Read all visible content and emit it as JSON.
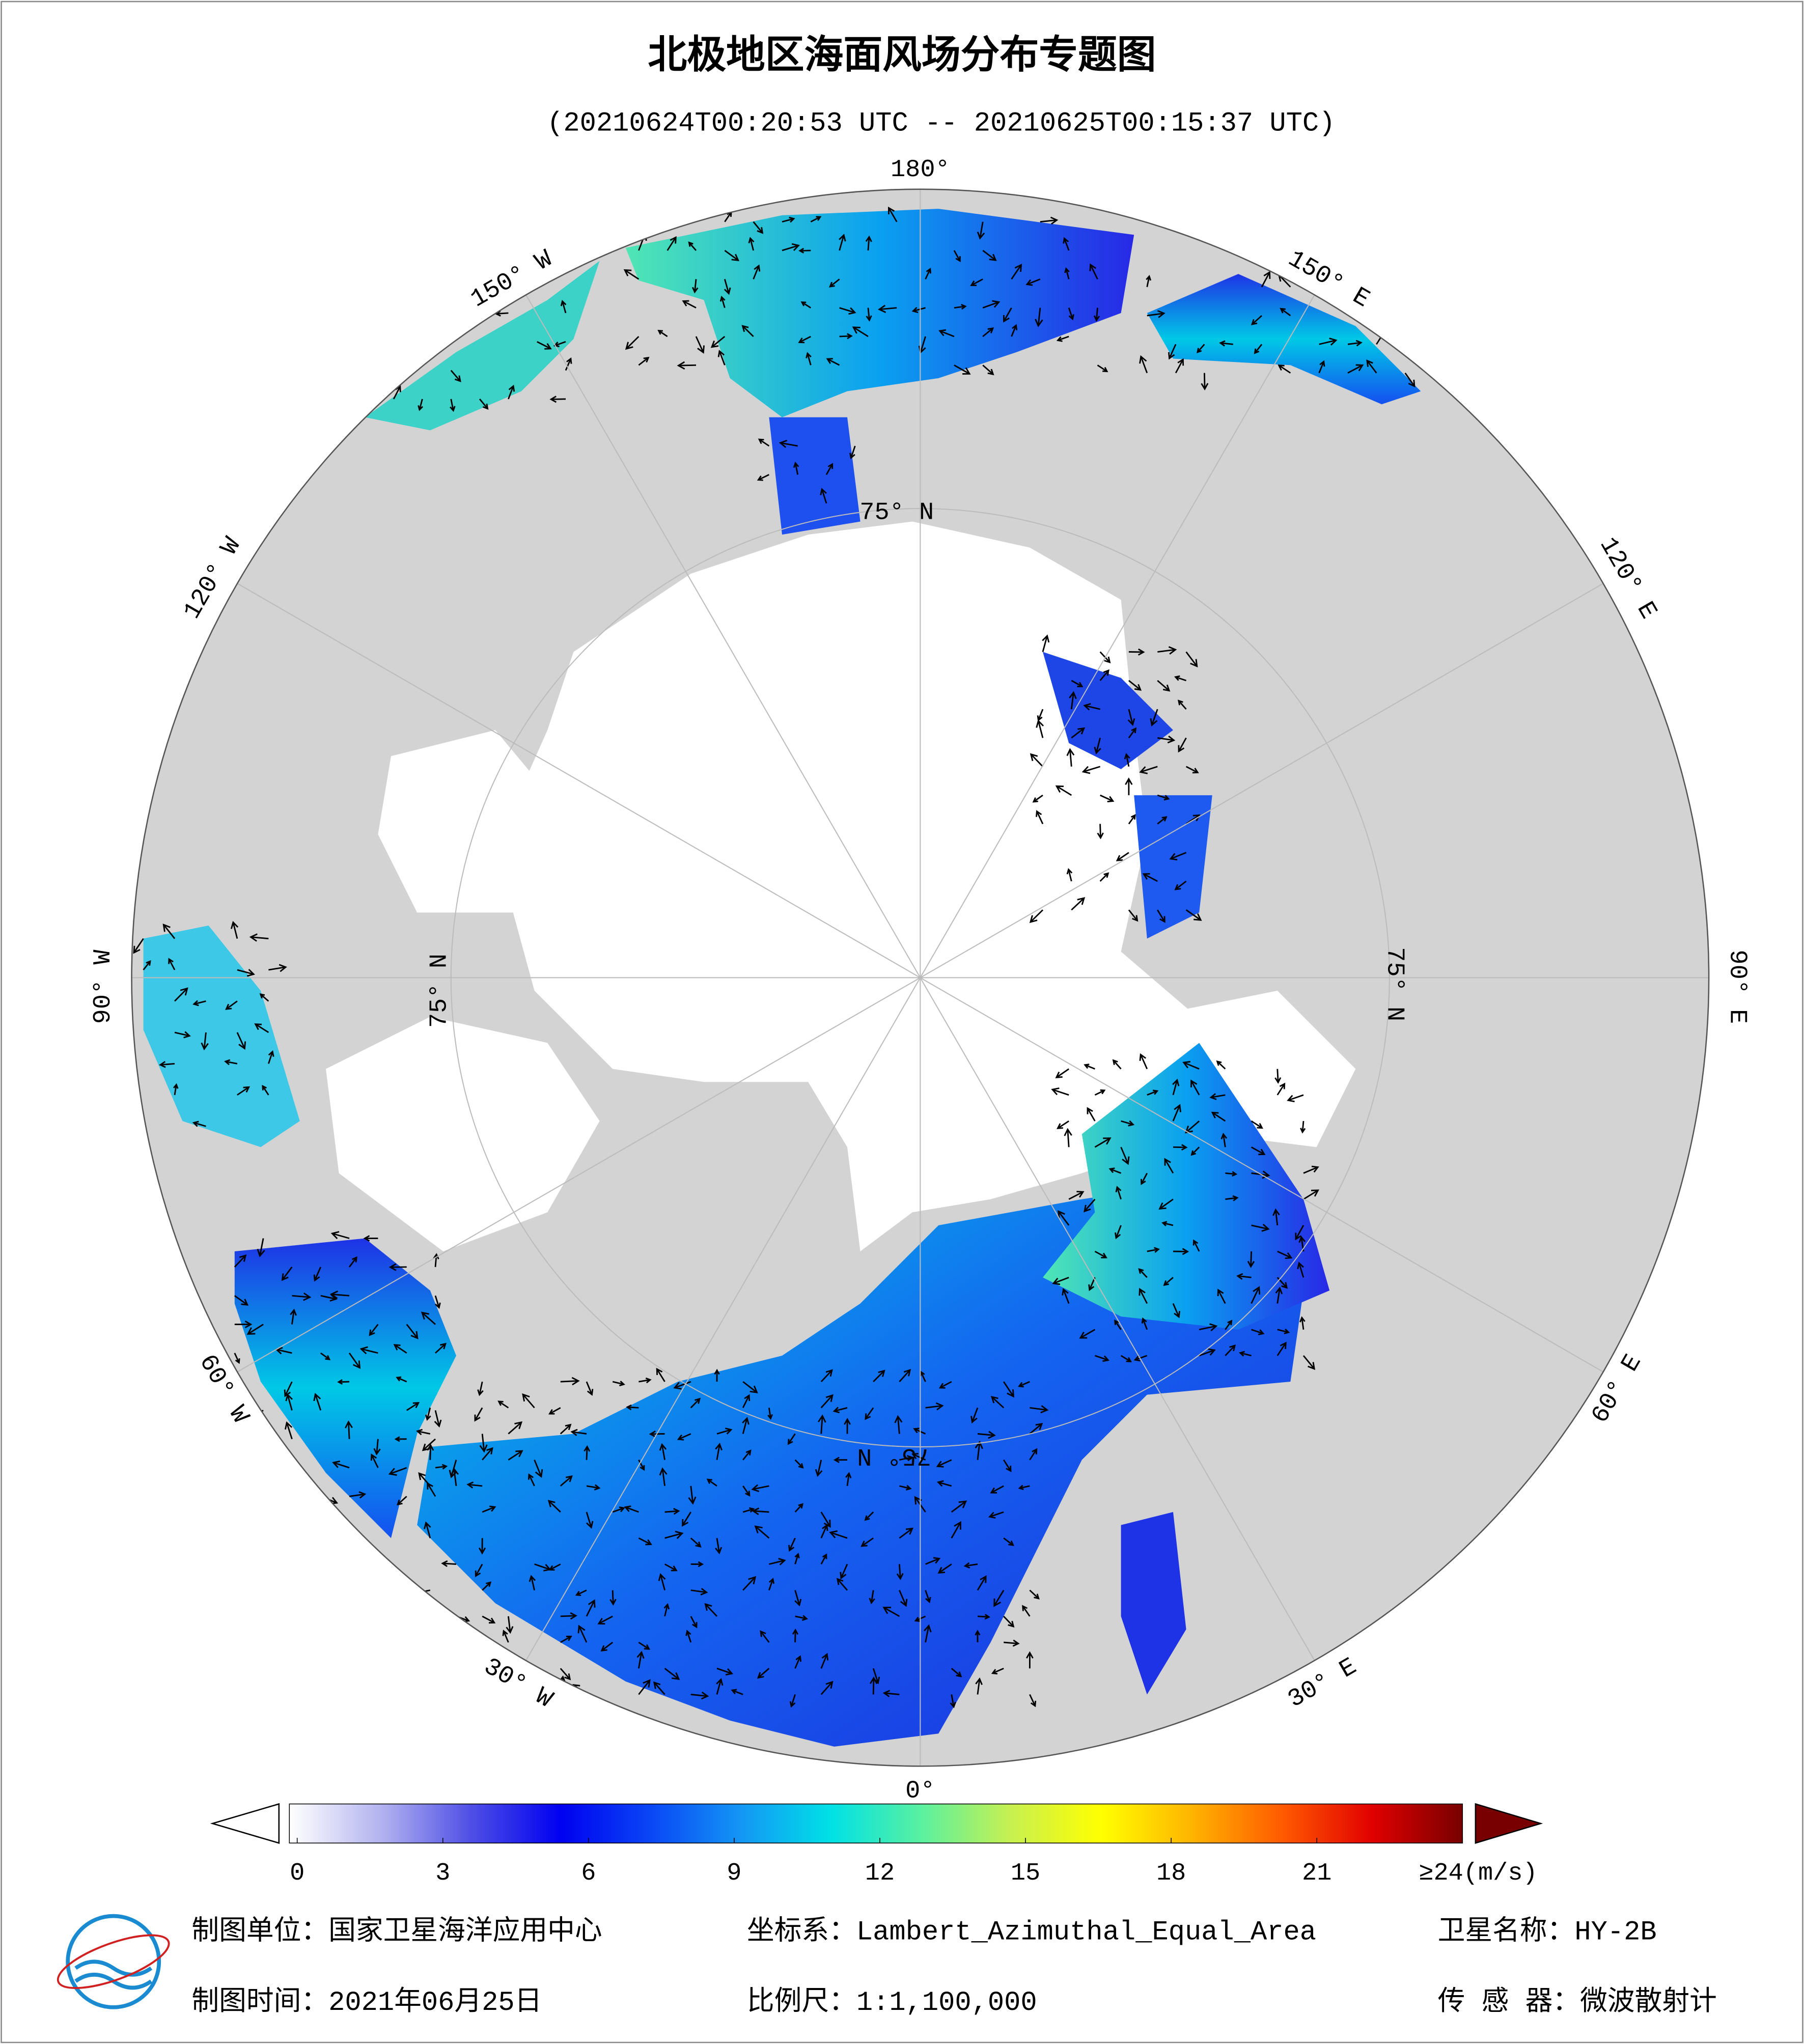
{
  "header": {
    "title": "北极地区海面风场分布专题图",
    "subtitle": "(20210624T00:20:53 UTC -- 20210625T00:15:37 UTC)"
  },
  "map": {
    "longitude_labels": [
      "180°",
      "150° W",
      "120° W",
      "90° W",
      "60° W",
      "30° W",
      "0°",
      "30° E",
      "60° E",
      "90° E",
      "120° E",
      "150° E"
    ],
    "latitude_label": "75° N"
  },
  "colorbar": {
    "lim": [
      0,
      24
    ],
    "ticks": [
      0,
      3,
      6,
      9,
      12,
      15,
      18,
      21,
      {
        "value": 24,
        "label": "≥24(m/s)"
      }
    ],
    "colors": [
      "#ffffff",
      "#b4b4f0",
      "#5050e6",
      "#0000f0",
      "#0a46f5",
      "#1496f5",
      "#00e1e6",
      "#5af0a0",
      "#c8f050",
      "#ffff00",
      "#ffb400",
      "#ff5a00",
      "#e10000",
      "#780000"
    ]
  },
  "footer": {
    "unit": "制图单位：国家卫星海洋应用中心",
    "coordinate": "坐标系：Lambert_Azimuthal_Equal_Area",
    "satellite": "卫星名称：HY-2B",
    "date": "制图时间：2021年06月25日",
    "scale": "比例尺：1:1,100,000",
    "sensor": "传 感 器：微波散射计"
  }
}
